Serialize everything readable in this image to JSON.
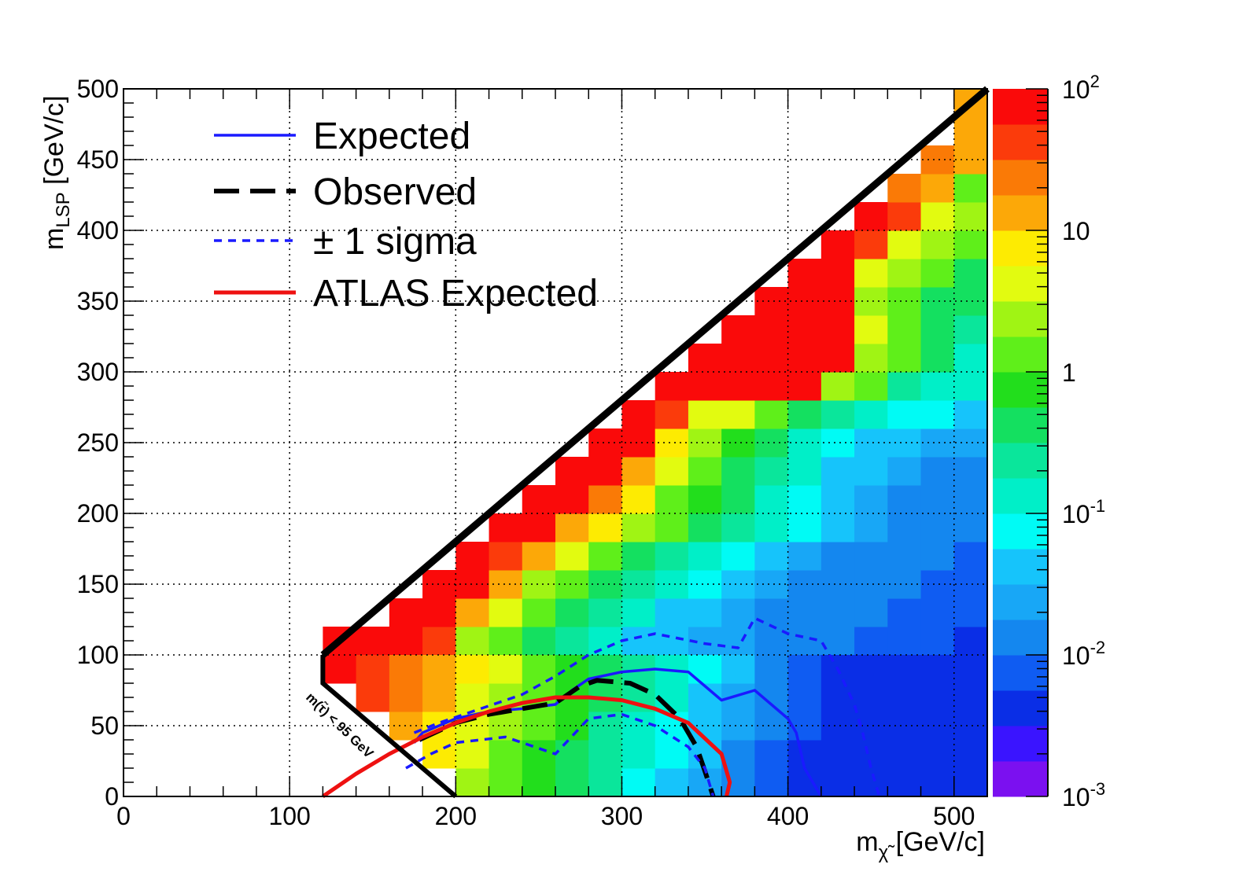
{
  "chart_data": {
    "type": "heatmap",
    "title": "",
    "xlabel": "m",
    "xlabel_sub": "χ̃",
    "xlabel_unit": " [GeV/c]",
    "ylabel": "m",
    "ylabel_sub": "LSP",
    "ylabel_unit": " [GeV/c]",
    "xlim": [
      0,
      520
    ],
    "ylim": [
      0,
      500
    ],
    "x_ticks": [
      "0",
      "100",
      "200",
      "300",
      "400",
      "500"
    ],
    "y_ticks": [
      "0",
      "50",
      "100",
      "150",
      "200",
      "250",
      "300",
      "350",
      "400",
      "450",
      "500"
    ],
    "grid": true,
    "log_color_scale": true,
    "zlim": [
      0.001,
      100
    ],
    "colorbar_ticks": [
      {
        "base": "10",
        "exp": "2",
        "value": 100
      },
      {
        "base": "10",
        "exp": "",
        "value": 10
      },
      {
        "base": "1",
        "exp": "",
        "value": 1
      },
      {
        "base": "10",
        "exp": "-1",
        "value": 0.1
      },
      {
        "base": "10",
        "exp": "-2",
        "value": 0.01
      },
      {
        "base": "10",
        "exp": "-3",
        "value": 0.001
      }
    ],
    "cell_width": 20,
    "cell_height": 20,
    "cells_log10": [
      [
        120,
        100,
        2
      ],
      [
        140,
        100,
        2
      ],
      [
        160,
        100,
        2
      ],
      [
        180,
        100,
        1.5
      ],
      [
        200,
        100,
        0.3
      ],
      [
        220,
        100,
        0
      ],
      [
        240,
        100,
        -0.4
      ],
      [
        260,
        100,
        -0.7
      ],
      [
        280,
        100,
        -1
      ],
      [
        300,
        100,
        -1.3
      ],
      [
        320,
        100,
        -1.5
      ],
      [
        340,
        100,
        -1.6
      ],
      [
        360,
        100,
        -1.7
      ],
      [
        380,
        100,
        -1.9
      ],
      [
        400,
        100,
        -2
      ],
      [
        420,
        100,
        -2
      ],
      [
        440,
        100,
        -2.1
      ],
      [
        460,
        100,
        -2.1
      ],
      [
        480,
        100,
        -2.2
      ],
      [
        500,
        100,
        -2.3
      ],
      [
        160,
        120,
        2
      ],
      [
        180,
        120,
        2
      ],
      [
        200,
        120,
        1.2
      ],
      [
        220,
        120,
        0.5
      ],
      [
        240,
        120,
        0
      ],
      [
        260,
        120,
        -0.3
      ],
      [
        280,
        120,
        -0.6
      ],
      [
        300,
        120,
        -1
      ],
      [
        320,
        120,
        -1.3
      ],
      [
        340,
        120,
        -1.5
      ],
      [
        360,
        120,
        -1.6
      ],
      [
        380,
        120,
        -1.8
      ],
      [
        400,
        120,
        -1.9
      ],
      [
        420,
        120,
        -2
      ],
      [
        440,
        120,
        -2
      ],
      [
        460,
        120,
        -2.1
      ],
      [
        480,
        120,
        -2.1
      ],
      [
        500,
        120,
        -2.2
      ],
      [
        180,
        140,
        2
      ],
      [
        200,
        140,
        2
      ],
      [
        220,
        140,
        1
      ],
      [
        240,
        140,
        0.4
      ],
      [
        260,
        140,
        0
      ],
      [
        280,
        140,
        -0.3
      ],
      [
        300,
        140,
        -0.6
      ],
      [
        320,
        140,
        -0.9
      ],
      [
        340,
        140,
        -1.2
      ],
      [
        360,
        140,
        -1.4
      ],
      [
        380,
        140,
        -1.6
      ],
      [
        400,
        140,
        -1.8
      ],
      [
        420,
        140,
        -1.9
      ],
      [
        440,
        140,
        -2
      ],
      [
        460,
        140,
        -2
      ],
      [
        480,
        140,
        -2.1
      ],
      [
        500,
        140,
        -2.1
      ],
      [
        200,
        160,
        2
      ],
      [
        220,
        160,
        1.6
      ],
      [
        240,
        160,
        1.2
      ],
      [
        260,
        160,
        0.5
      ],
      [
        280,
        160,
        0
      ],
      [
        300,
        160,
        -0.3
      ],
      [
        320,
        160,
        -0.6
      ],
      [
        340,
        160,
        -0.9
      ],
      [
        360,
        160,
        -1.2
      ],
      [
        380,
        160,
        -1.4
      ],
      [
        400,
        160,
        -1.6
      ],
      [
        420,
        160,
        -1.8
      ],
      [
        440,
        160,
        -1.9
      ],
      [
        460,
        160,
        -2
      ],
      [
        480,
        160,
        -2
      ],
      [
        500,
        160,
        -2.1
      ],
      [
        220,
        180,
        2
      ],
      [
        240,
        180,
        2
      ],
      [
        260,
        180,
        1.2
      ],
      [
        280,
        180,
        0.8
      ],
      [
        300,
        180,
        0.3
      ],
      [
        320,
        180,
        0
      ],
      [
        340,
        180,
        -0.3
      ],
      [
        360,
        180,
        -0.6
      ],
      [
        380,
        180,
        -0.9
      ],
      [
        400,
        180,
        -1.2
      ],
      [
        420,
        180,
        -1.4
      ],
      [
        440,
        180,
        -1.6
      ],
      [
        460,
        180,
        -1.8
      ],
      [
        480,
        180,
        -1.9
      ],
      [
        500,
        180,
        -2
      ],
      [
        240,
        200,
        2
      ],
      [
        260,
        200,
        2
      ],
      [
        280,
        200,
        1.3
      ],
      [
        300,
        200,
        0.8
      ],
      [
        320,
        200,
        0.2
      ],
      [
        340,
        200,
        -0.2
      ],
      [
        360,
        200,
        -0.5
      ],
      [
        380,
        200,
        -0.8
      ],
      [
        400,
        200,
        -1.1
      ],
      [
        420,
        200,
        -1.4
      ],
      [
        440,
        200,
        -1.6
      ],
      [
        460,
        200,
        -1.8
      ],
      [
        480,
        200,
        -1.9
      ],
      [
        500,
        200,
        -2
      ],
      [
        260,
        220,
        2
      ],
      [
        280,
        220,
        2
      ],
      [
        300,
        220,
        1.1
      ],
      [
        320,
        220,
        0.5
      ],
      [
        340,
        220,
        0
      ],
      [
        360,
        220,
        -0.3
      ],
      [
        380,
        220,
        -0.7
      ],
      [
        400,
        220,
        -1
      ],
      [
        420,
        220,
        -1.3
      ],
      [
        440,
        220,
        -1.5
      ],
      [
        460,
        220,
        -1.7
      ],
      [
        480,
        220,
        -1.8
      ],
      [
        500,
        220,
        -1.9
      ],
      [
        280,
        240,
        2
      ],
      [
        300,
        240,
        2
      ],
      [
        320,
        240,
        0.9
      ],
      [
        340,
        240,
        0.4
      ],
      [
        360,
        240,
        -0.1
      ],
      [
        380,
        240,
        -0.4
      ],
      [
        400,
        240,
        -0.8
      ],
      [
        420,
        240,
        -1.1
      ],
      [
        440,
        240,
        -1.3
      ],
      [
        460,
        240,
        -1.5
      ],
      [
        480,
        240,
        -1.6
      ],
      [
        500,
        240,
        -1.7
      ],
      [
        300,
        260,
        2
      ],
      [
        320,
        260,
        1.5
      ],
      [
        340,
        260,
        0.7
      ],
      [
        360,
        260,
        0.5
      ],
      [
        380,
        260,
        0
      ],
      [
        400,
        260,
        -0.3
      ],
      [
        420,
        260,
        -0.6
      ],
      [
        440,
        260,
        -0.9
      ],
      [
        460,
        260,
        -1.1
      ],
      [
        480,
        260,
        -1.2
      ],
      [
        500,
        260,
        -1.3
      ],
      [
        320,
        280,
        2
      ],
      [
        340,
        280,
        2
      ],
      [
        360,
        280,
        2
      ],
      [
        380,
        280,
        2
      ],
      [
        400,
        280,
        2
      ],
      [
        420,
        280,
        0.3
      ],
      [
        440,
        280,
        0
      ],
      [
        460,
        280,
        -0.6
      ],
      [
        480,
        280,
        -0.9
      ],
      [
        500,
        280,
        -1
      ],
      [
        340,
        300,
        2
      ],
      [
        360,
        300,
        2
      ],
      [
        380,
        300,
        2
      ],
      [
        400,
        300,
        2
      ],
      [
        420,
        300,
        1.9
      ],
      [
        440,
        300,
        0.3
      ],
      [
        460,
        300,
        0
      ],
      [
        480,
        300,
        -0.5
      ],
      [
        500,
        300,
        -0.8
      ],
      [
        360,
        320,
        2
      ],
      [
        380,
        320,
        2
      ],
      [
        400,
        320,
        2
      ],
      [
        420,
        320,
        2
      ],
      [
        440,
        320,
        0.6
      ],
      [
        460,
        320,
        0.1
      ],
      [
        480,
        320,
        -0.3
      ],
      [
        500,
        320,
        -0.6
      ],
      [
        380,
        340,
        2
      ],
      [
        400,
        340,
        2
      ],
      [
        420,
        340,
        1.9
      ],
      [
        440,
        340,
        0.3
      ],
      [
        460,
        340,
        0
      ],
      [
        480,
        340,
        -0.3
      ],
      [
        500,
        340,
        -0.5
      ],
      [
        400,
        360,
        2
      ],
      [
        420,
        360,
        2
      ],
      [
        440,
        360,
        0.5
      ],
      [
        460,
        360,
        0.3
      ],
      [
        480,
        360,
        0
      ],
      [
        500,
        360,
        -0.3
      ],
      [
        420,
        380,
        2
      ],
      [
        440,
        380,
        1.6
      ],
      [
        460,
        380,
        0.5
      ],
      [
        480,
        380,
        0.3
      ],
      [
        500,
        380,
        0
      ],
      [
        440,
        400,
        2
      ],
      [
        460,
        400,
        1.6
      ],
      [
        480,
        400,
        0.5
      ],
      [
        500,
        400,
        0.3
      ],
      [
        460,
        420,
        1.4
      ],
      [
        480,
        420,
        1.2
      ],
      [
        500,
        420,
        0.1
      ],
      [
        480,
        440,
        1.3
      ],
      [
        500,
        440,
        1.2
      ],
      [
        500,
        460,
        1.2
      ],
      [
        500,
        480,
        1.2
      ]
    ],
    "cells_bottom": {
      "y_bands": [
        [
          0,
          20
        ],
        [
          20,
          40
        ],
        [
          40,
          60
        ],
        [
          60,
          80
        ],
        [
          80,
          100
        ]
      ],
      "note": "lower region cells"
    },
    "series": [
      {
        "name": "Expected",
        "style": "solid",
        "color": "#1a1aff",
        "points": [
          [
            175,
            38
          ],
          [
            180,
            45
          ],
          [
            200,
            55
          ],
          [
            220,
            60
          ],
          [
            240,
            62
          ],
          [
            260,
            65
          ],
          [
            270,
            75
          ],
          [
            280,
            83
          ],
          [
            300,
            88
          ],
          [
            320,
            90
          ],
          [
            340,
            88
          ],
          [
            360,
            68
          ],
          [
            380,
            75
          ],
          [
            400,
            55
          ],
          [
            405,
            45
          ],
          [
            410,
            20
          ],
          [
            420,
            0
          ]
        ]
      },
      {
        "name": "Observed",
        "style": "dashed",
        "color": "#000000",
        "points": [
          [
            178,
            40
          ],
          [
            200,
            52
          ],
          [
            220,
            58
          ],
          [
            240,
            62
          ],
          [
            260,
            66
          ],
          [
            275,
            78
          ],
          [
            285,
            82
          ],
          [
            305,
            80
          ],
          [
            320,
            72
          ],
          [
            335,
            55
          ],
          [
            345,
            35
          ],
          [
            350,
            18
          ],
          [
            355,
            0
          ]
        ]
      },
      {
        "name": "± 1 sigma",
        "style": "dotted",
        "color": "#1a1aff",
        "points": [
          [
            175,
            45
          ],
          [
            190,
            52
          ],
          [
            210,
            60
          ],
          [
            240,
            72
          ],
          [
            260,
            85
          ],
          [
            280,
            100
          ],
          [
            300,
            110
          ],
          [
            320,
            115
          ],
          [
            350,
            108
          ],
          [
            370,
            105
          ],
          [
            380,
            126
          ],
          [
            400,
            115
          ],
          [
            420,
            110
          ],
          [
            430,
            90
          ],
          [
            440,
            65
          ],
          [
            445,
            45
          ],
          [
            450,
            20
          ],
          [
            455,
            0
          ]
        ]
      },
      {
        "name": "± 1 sigma",
        "style": "dotted",
        "color": "#1a1aff",
        "legend": false,
        "points": [
          [
            170,
            20
          ],
          [
            185,
            30
          ],
          [
            200,
            38
          ],
          [
            230,
            42
          ],
          [
            260,
            30
          ],
          [
            280,
            55
          ],
          [
            300,
            58
          ],
          [
            320,
            50
          ],
          [
            340,
            35
          ],
          [
            350,
            20
          ],
          [
            355,
            0
          ]
        ]
      },
      {
        "name": "ATLAS Expected",
        "style": "solid",
        "color": "#ee1111",
        "points": [
          [
            120,
            0
          ],
          [
            140,
            16
          ],
          [
            160,
            30
          ],
          [
            180,
            42
          ],
          [
            200,
            52
          ],
          [
            220,
            60
          ],
          [
            240,
            66
          ],
          [
            260,
            70
          ],
          [
            280,
            70
          ],
          [
            300,
            68
          ],
          [
            320,
            62
          ],
          [
            340,
            52
          ],
          [
            360,
            30
          ],
          [
            365,
            10
          ],
          [
            363,
            0
          ]
        ]
      }
    ],
    "kinematic_boundary": {
      "points": [
        [
          120,
          100
        ],
        [
          120,
          80
        ],
        [
          200,
          0
        ]
      ],
      "diagonal": [
        [
          120,
          100
        ],
        [
          520,
          500
        ]
      ],
      "label": "m(τ̃) < 95 GeV"
    },
    "legend": {
      "placement": "top-left",
      "entries": [
        {
          "label": "Expected",
          "color": "#1a1aff",
          "style": "solid"
        },
        {
          "label": "Observed",
          "color": "#000000",
          "style": "dashed"
        },
        {
          "label": "± 1 sigma",
          "color": "#1a1aff",
          "style": "dotted"
        },
        {
          "label": "ATLAS Expected",
          "color": "#ee1111",
          "style": "solid"
        }
      ]
    }
  }
}
